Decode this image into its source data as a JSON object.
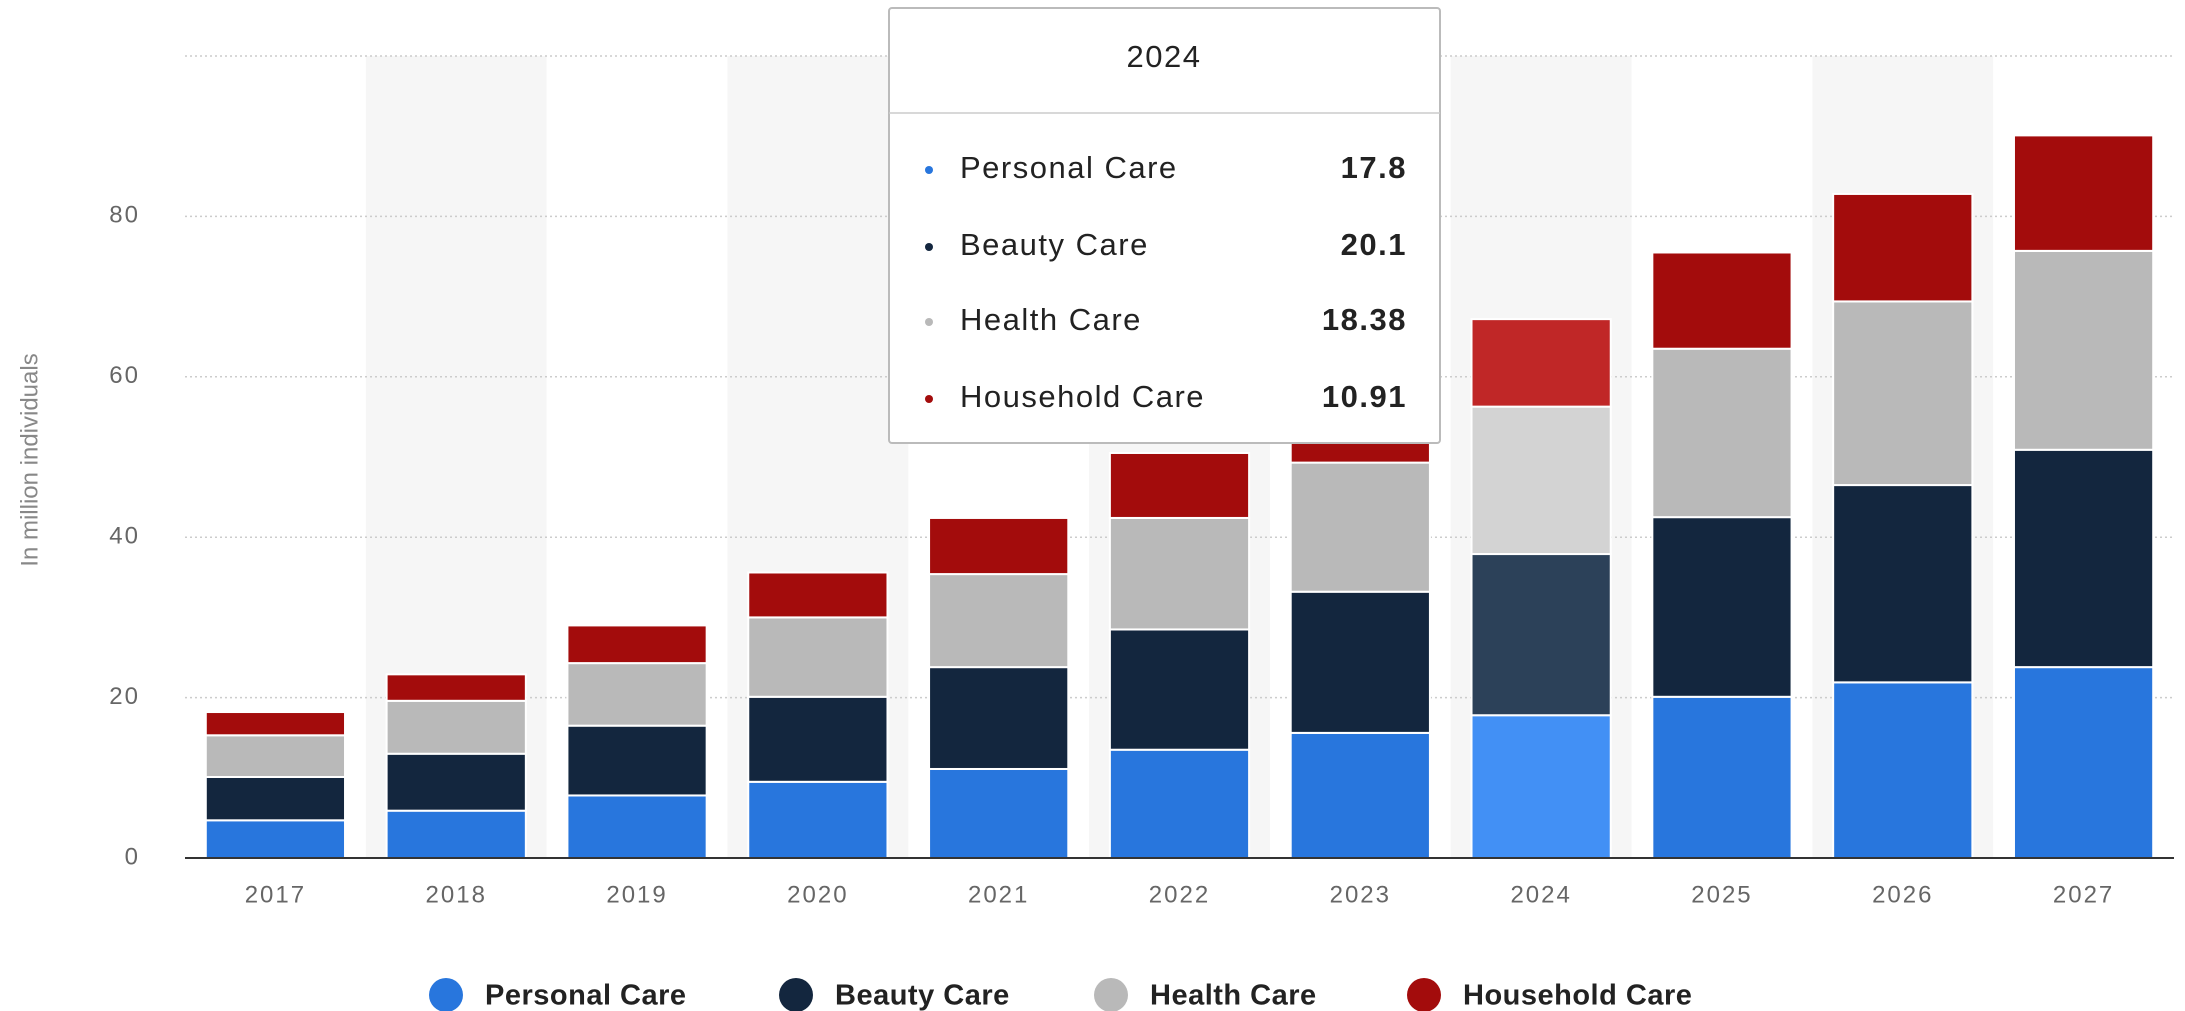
{
  "chart_data": {
    "type": "bar",
    "stacked": true,
    "y_label": "In million individuals",
    "categories": [
      "2017",
      "2018",
      "2019",
      "2020",
      "2021",
      "2022",
      "2023",
      "2024",
      "2025",
      "2026",
      "2027"
    ],
    "series": [
      {
        "name": "Personal Care",
        "color": "#2876dd",
        "values": [
          4.7,
          5.9,
          7.8,
          9.5,
          11.1,
          13.5,
          15.6,
          17.8,
          20.1,
          21.9,
          23.8
        ]
      },
      {
        "name": "Beauty Care",
        "color": "#13263e",
        "values": [
          5.4,
          7.1,
          8.7,
          10.6,
          12.7,
          15.0,
          17.6,
          20.1,
          22.4,
          24.6,
          27.1
        ]
      },
      {
        "name": "Health Care",
        "color": "#b9b9b9",
        "values": [
          5.2,
          6.6,
          7.8,
          9.9,
          11.6,
          13.9,
          16.1,
          18.38,
          21.0,
          22.9,
          24.8
        ]
      },
      {
        "name": "Household Care",
        "color": "#a30c0c",
        "values": [
          2.9,
          3.3,
          4.7,
          5.6,
          7.0,
          8.1,
          9.4,
          10.91,
          12.0,
          13.4,
          14.4
        ]
      }
    ],
    "ylim": [
      0,
      100
    ],
    "yticks": [
      0,
      20,
      40,
      60,
      80
    ],
    "grid": true,
    "legend": "bottom"
  }
}
